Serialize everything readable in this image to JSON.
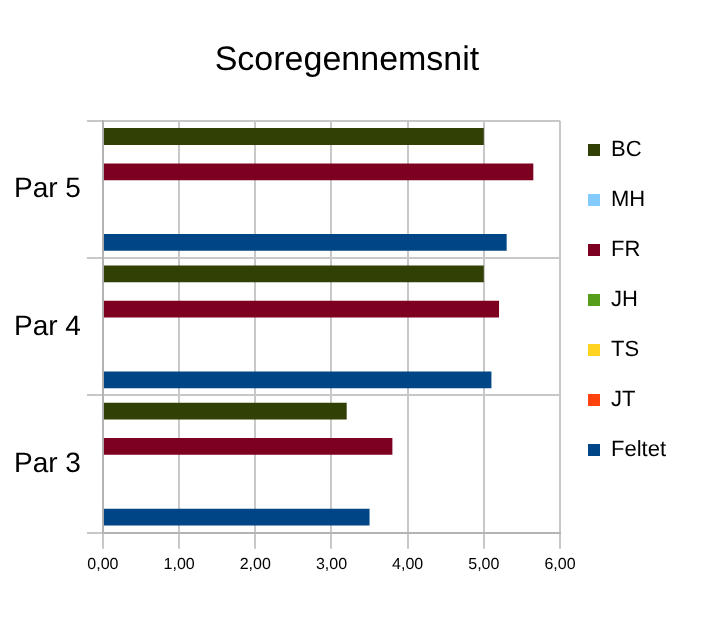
{
  "chart_data": {
    "type": "bar",
    "orientation": "horizontal",
    "title": "Scoregennemsnit",
    "categories": [
      "Par 5",
      "Par 4",
      "Par 3"
    ],
    "series": [
      {
        "name": "BC",
        "color": "#314004",
        "values": [
          5.0,
          5.0,
          3.2
        ]
      },
      {
        "name": "MH",
        "color": "#83caff",
        "values": [
          null,
          null,
          null
        ]
      },
      {
        "name": "FR",
        "color": "#7e0021",
        "values": [
          5.65,
          5.2,
          3.8
        ]
      },
      {
        "name": "JH",
        "color": "#579d1c",
        "values": [
          null,
          null,
          null
        ]
      },
      {
        "name": "TS",
        "color": "#ffd320",
        "values": [
          null,
          null,
          null
        ]
      },
      {
        "name": "JT",
        "color": "#ff420e",
        "values": [
          null,
          null,
          null
        ]
      },
      {
        "name": "Feltet",
        "color": "#004586",
        "values": [
          5.3,
          5.1,
          3.5
        ]
      }
    ],
    "xlim": [
      0,
      6
    ],
    "xticks": [
      {
        "value": 0,
        "label": "0,00"
      },
      {
        "value": 1,
        "label": "1,00"
      },
      {
        "value": 2,
        "label": "2,00"
      },
      {
        "value": 3,
        "label": "3,00"
      },
      {
        "value": 4,
        "label": "4,00"
      },
      {
        "value": 5,
        "label": "5,00"
      },
      {
        "value": 6,
        "label": "6,00"
      }
    ],
    "grid": true,
    "legend": "right"
  }
}
